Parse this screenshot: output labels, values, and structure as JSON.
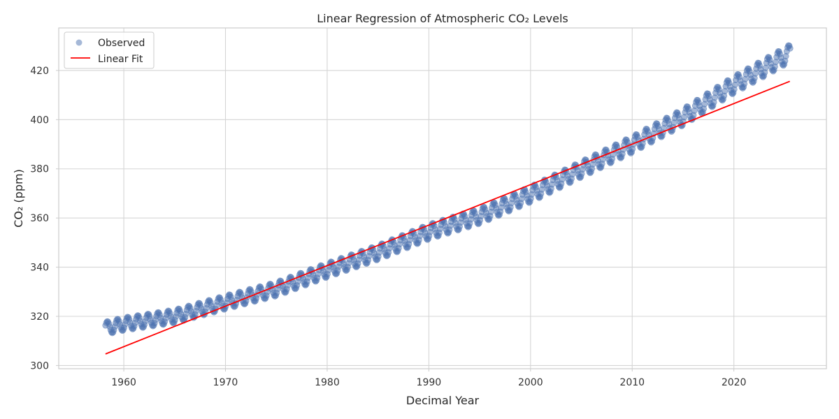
{
  "chart_data": {
    "type": "scatter",
    "title": "Linear Regression of Atmospheric CO₂ Levels",
    "xlabel": "Decimal Year",
    "ylabel": "CO₂ (ppm)",
    "xlim": [
      1953.6,
      2029.1
    ],
    "ylim": [
      298.7,
      437.3
    ],
    "xticks": [
      1960,
      1970,
      1980,
      1990,
      2000,
      2010,
      2020
    ],
    "yticks": [
      300,
      320,
      340,
      360,
      380,
      400,
      420
    ],
    "grid": true,
    "legend_position": "top-left",
    "observed_series": {
      "name": "Observed",
      "color": "#4c72b0",
      "x_start": 1958.2,
      "x_end": 2025.5,
      "interval": "monthly",
      "trend_anchors": [
        [
          1958,
          315.0
        ],
        [
          1960,
          316.9
        ],
        [
          1965,
          320.0
        ],
        [
          1970,
          325.7
        ],
        [
          1975,
          331.1
        ],
        [
          1980,
          338.8
        ],
        [
          1985,
          346.0
        ],
        [
          1990,
          354.4
        ],
        [
          1995,
          360.8
        ],
        [
          2000,
          369.6
        ],
        [
          2005,
          379.8
        ],
        [
          2010,
          389.9
        ],
        [
          2015,
          401.0
        ],
        [
          2020,
          414.2
        ],
        [
          2023,
          421.1
        ],
        [
          2025.5,
          427.0
        ]
      ],
      "seasonal_amplitude": [
        2.6,
        3.5
      ]
    },
    "fit_series": {
      "name": "Linear Fit",
      "color": "#ff0000",
      "x": [
        1958.2,
        2025.5
      ],
      "y": [
        304.7,
        415.6
      ]
    }
  }
}
